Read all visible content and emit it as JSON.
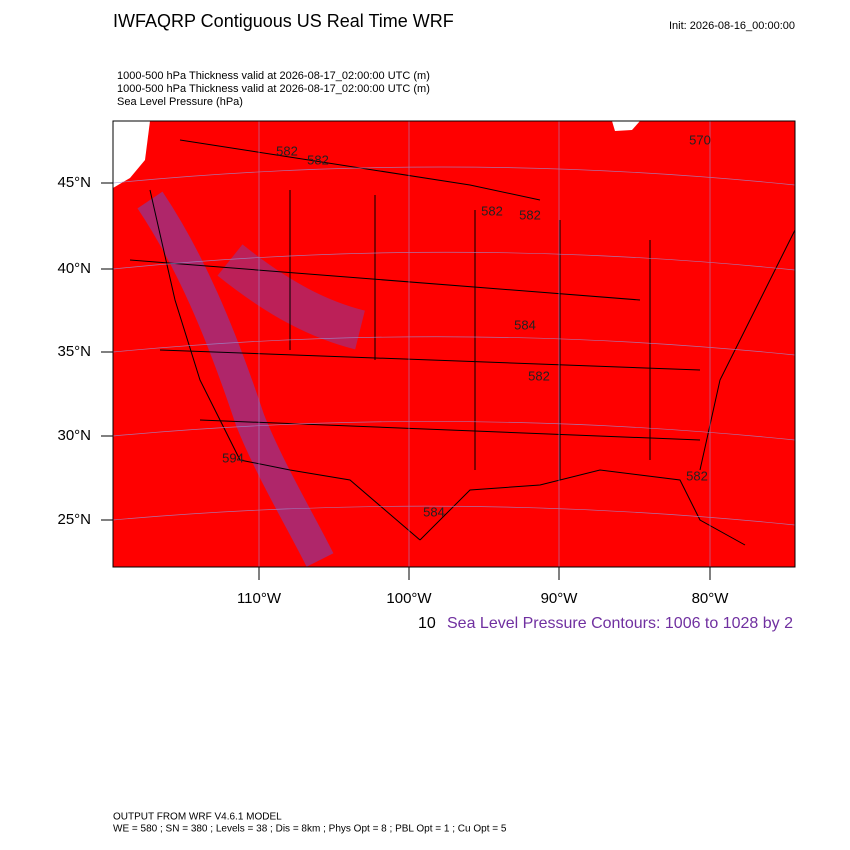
{
  "header": {
    "title": "IWFAQRP Contiguous US Real Time WRF",
    "init": "Init: 2026-08-16_00:00:00"
  },
  "subtitles": [
    "1000-500 hPa Thickness valid at 2026-08-17_02:00:00 UTC   (m)",
    "1000-500 hPa Thickness valid at 2026-08-17_02:00:00 UTC   (m)",
    "Sea Level Pressure   (hPa)"
  ],
  "map": {
    "lat_labels": [
      "45°N",
      "40°N",
      "35°N",
      "30°N",
      "25°N"
    ],
    "lon_labels": [
      "110°W",
      "100°W",
      "90°W",
      "80°W"
    ],
    "contour_labels": [
      "570",
      "582",
      "582",
      "582",
      "582",
      "584",
      "582",
      "594",
      "582",
      "584"
    ]
  },
  "caption": {
    "overlap": "10",
    "text": "Sea Level Pressure Contours: 1006 to 1028 by 2"
  },
  "footer": {
    "line1": "OUTPUT FROM WRF V4.6.1 MODEL",
    "line2": "WE = 580 ; SN = 380 ; Levels = 38 ; Dis = 8km ; Phys Opt = 8 ; PBL Opt = 1 ; Cu Opt = 5"
  }
}
